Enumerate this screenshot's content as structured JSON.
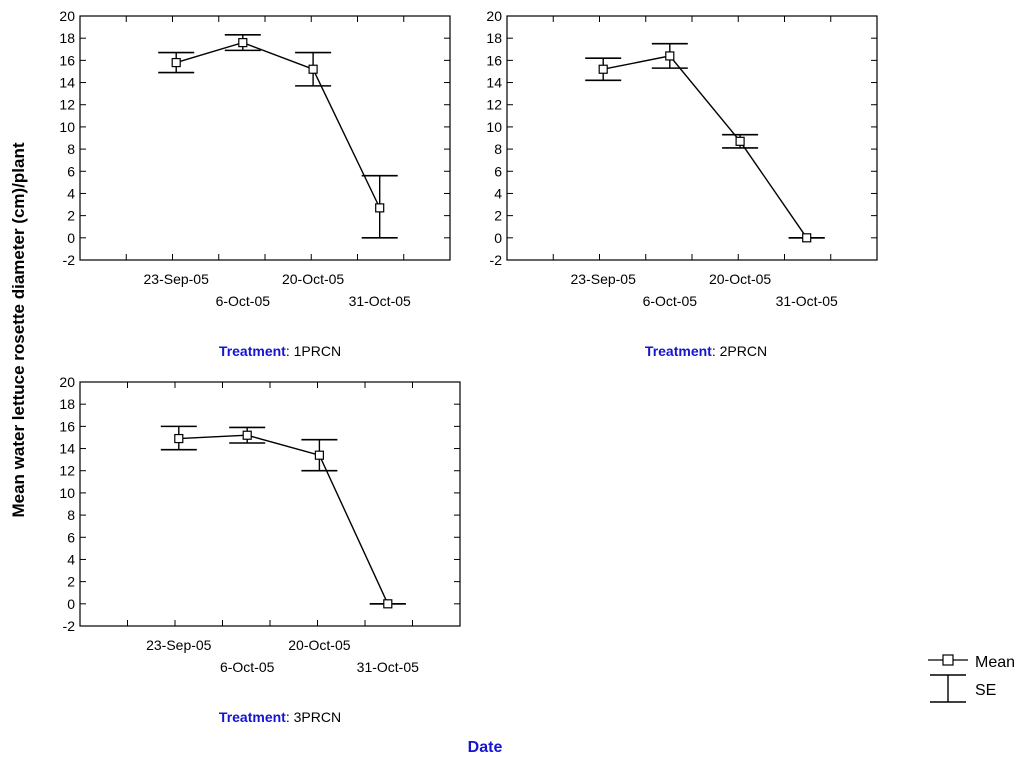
{
  "chart_data": [
    {
      "type": "line",
      "facet_label": "Treatment",
      "facet_value": "1PRCN",
      "x": [
        "23-Sep-05",
        "6-Oct-05",
        "20-Oct-05",
        "31-Oct-05"
      ],
      "series": [
        {
          "name": "Mean",
          "values": [
            15.8,
            17.6,
            15.2,
            2.7
          ]
        },
        {
          "name": "SE",
          "lower": [
            14.9,
            16.9,
            13.7,
            0.0
          ],
          "upper": [
            16.7,
            18.3,
            16.7,
            5.6
          ]
        }
      ],
      "ylim": [
        -2,
        20
      ],
      "yticks": [
        -2,
        0,
        2,
        4,
        6,
        8,
        10,
        12,
        14,
        16,
        18,
        20
      ]
    },
    {
      "type": "line",
      "facet_label": "Treatment",
      "facet_value": "2PRCN",
      "x": [
        "23-Sep-05",
        "6-Oct-05",
        "20-Oct-05",
        "31-Oct-05"
      ],
      "series": [
        {
          "name": "Mean",
          "values": [
            15.2,
            16.4,
            8.7,
            0.0
          ]
        },
        {
          "name": "SE",
          "lower": [
            14.2,
            15.3,
            8.1,
            0.0
          ],
          "upper": [
            16.2,
            17.5,
            9.3,
            0.0
          ]
        }
      ],
      "ylim": [
        -2,
        20
      ],
      "yticks": [
        -2,
        0,
        2,
        4,
        6,
        8,
        10,
        12,
        14,
        16,
        18,
        20
      ]
    },
    {
      "type": "line",
      "facet_label": "Treatment",
      "facet_value": "3PRCN",
      "x": [
        "23-Sep-05",
        "6-Oct-05",
        "20-Oct-05",
        "31-Oct-05"
      ],
      "series": [
        {
          "name": "Mean",
          "values": [
            14.9,
            15.2,
            13.4,
            0.0
          ]
        },
        {
          "name": "SE",
          "lower": [
            13.9,
            14.5,
            12.0,
            0.0
          ],
          "upper": [
            16.0,
            15.9,
            14.8,
            0.0
          ]
        }
      ],
      "ylim": [
        -2,
        20
      ],
      "yticks": [
        -2,
        0,
        2,
        4,
        6,
        8,
        10,
        12,
        14,
        16,
        18,
        20
      ]
    }
  ],
  "ylabel": "Mean water lettuce rosette diameter (cm)/plant",
  "xlabel": "Date",
  "legend": {
    "position": "bottom-right",
    "items": [
      {
        "name": "Mean",
        "marker": "square-line"
      },
      {
        "name": "SE",
        "marker": "error-bar"
      }
    ]
  },
  "colors": {
    "axis": "#000000",
    "label_accent": "#1414d2",
    "text": "#000000"
  }
}
